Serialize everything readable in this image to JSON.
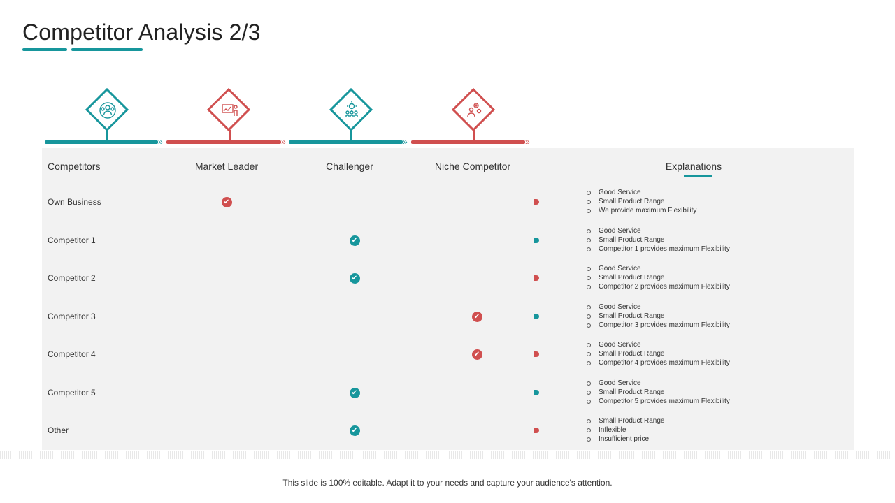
{
  "title": "Competitor Analysis 2/3",
  "icons": [
    {
      "name": "team-group-icon",
      "color": "#17969c"
    },
    {
      "name": "presentation-chart-icon",
      "color": "#d04f4f"
    },
    {
      "name": "team-gears-icon",
      "color": "#17969c"
    },
    {
      "name": "gears-person-icon",
      "color": "#d04f4f"
    }
  ],
  "headers": {
    "competitors": "Competitors",
    "market_leader": "Market Leader",
    "challenger": "Challenger",
    "niche": "Niche Competitor",
    "explanations": "Explanations"
  },
  "rows": [
    {
      "label": "Own Business",
      "category": "market_leader",
      "check_color": "#d04f4f",
      "marker_color": "#d04f4f",
      "explanations": [
        "Good Service",
        "Small Product Range",
        "We provide maximum Flexibility"
      ]
    },
    {
      "label": "Competitor 1",
      "category": "challenger",
      "check_color": "#17969c",
      "marker_color": "#17969c",
      "explanations": [
        "Good Service",
        "Small Product Range",
        "Competitor 1 provides maximum Flexibility"
      ]
    },
    {
      "label": "Competitor 2",
      "category": "challenger",
      "check_color": "#17969c",
      "marker_color": "#d04f4f",
      "explanations": [
        "Good Service",
        "Small Product Range",
        "Competitor 2 provides maximum Flexibility"
      ]
    },
    {
      "label": "Competitor 3",
      "category": "niche",
      "check_color": "#d04f4f",
      "marker_color": "#17969c",
      "explanations": [
        "Good Service",
        "Small Product Range",
        "Competitor 3 provides maximum Flexibility"
      ]
    },
    {
      "label": "Competitor 4",
      "category": "niche",
      "check_color": "#d04f4f",
      "marker_color": "#d04f4f",
      "explanations": [
        "Good Service",
        "Small Product Range",
        "Competitor 4 provides maximum Flexibility"
      ]
    },
    {
      "label": "Competitor 5",
      "category": "challenger",
      "check_color": "#17969c",
      "marker_color": "#17969c",
      "explanations": [
        "Good Service",
        "Small Product Range",
        "Competitor 5 provides maximum Flexibility"
      ]
    },
    {
      "label": "Other",
      "category": "challenger",
      "check_color": "#17969c",
      "marker_color": "#d04f4f",
      "explanations": [
        "Small Product Range",
        "Inflexible",
        "Insufficient price"
      ]
    }
  ],
  "footer": "This slide is 100% editable. Adapt it to your needs and capture your audience's attention."
}
